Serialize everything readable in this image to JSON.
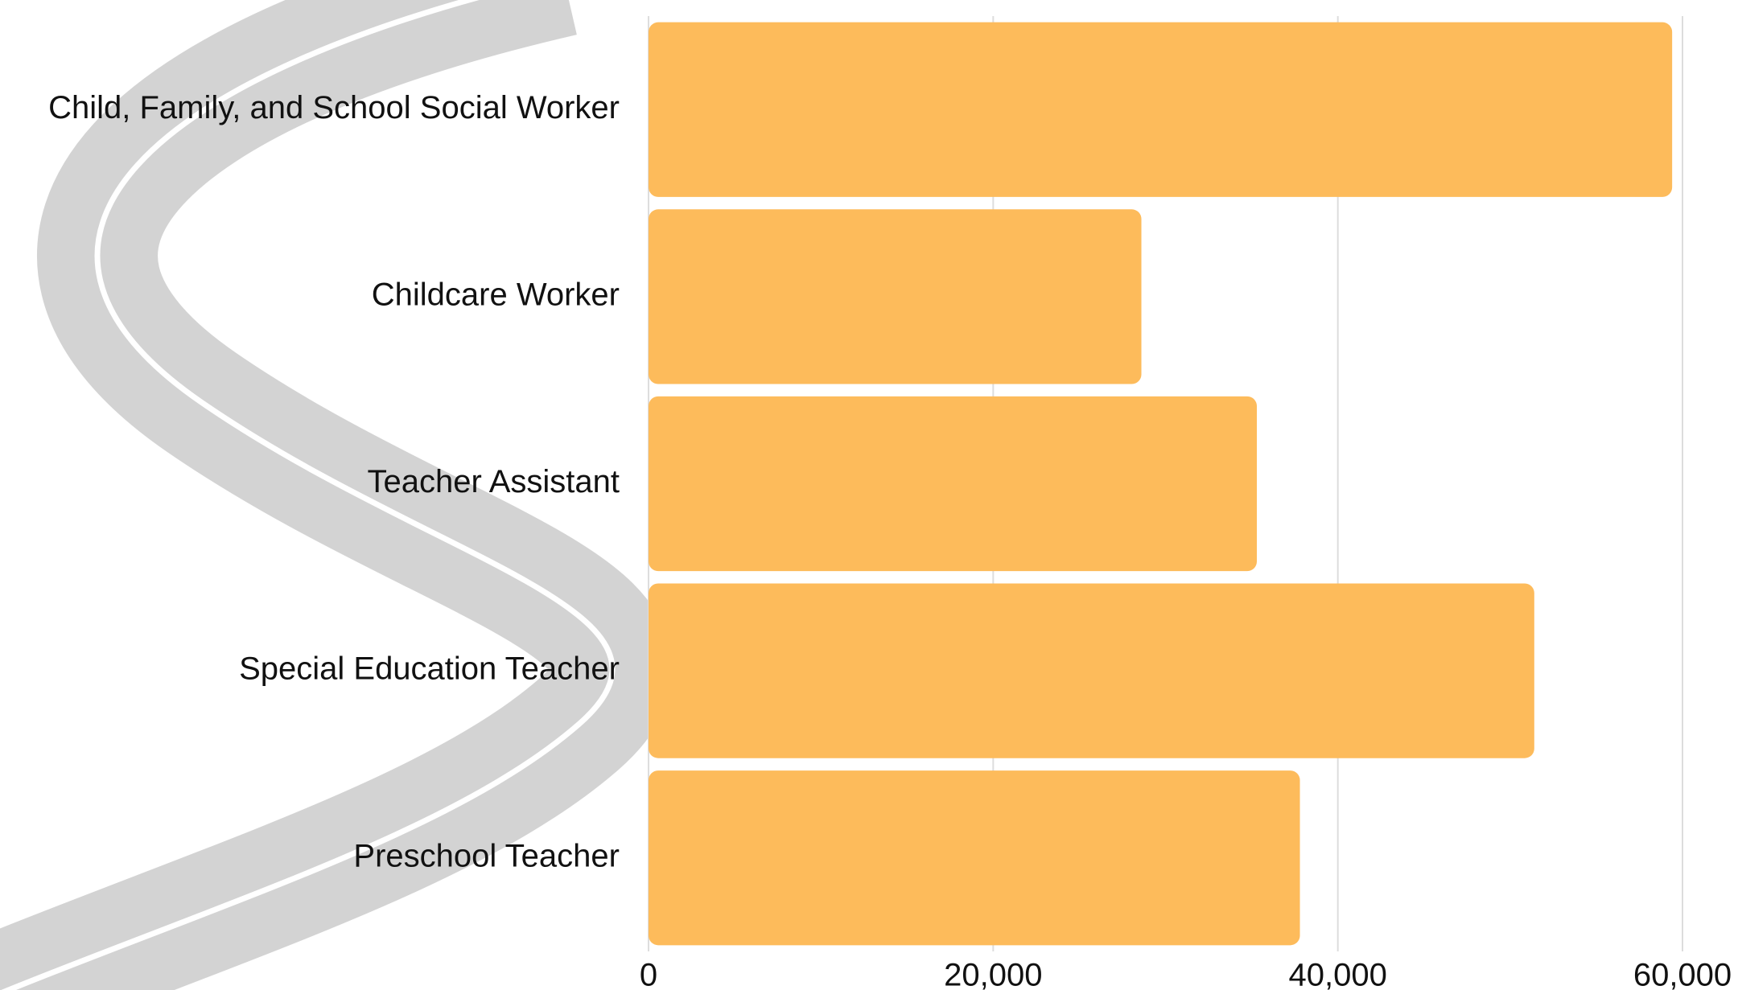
{
  "chart_data": {
    "type": "bar",
    "orientation": "horizontal",
    "categories": [
      "Child, Family, and School Social Worker",
      "Childcare Worker",
      "Teacher Assistant",
      "Special Education Teacher",
      "Preschool Teacher"
    ],
    "values": [
      59400,
      28600,
      35300,
      51400,
      37800
    ],
    "color": "#fdbb5b",
    "xlim": [
      0,
      60000
    ],
    "xticks": [
      0,
      {
        "value": 20000,
        "label": "20,000"
      },
      {
        "value": 40000,
        "label": "40,000"
      },
      {
        "value": 60000,
        "label": "60,000"
      }
    ],
    "grid": true
  }
}
